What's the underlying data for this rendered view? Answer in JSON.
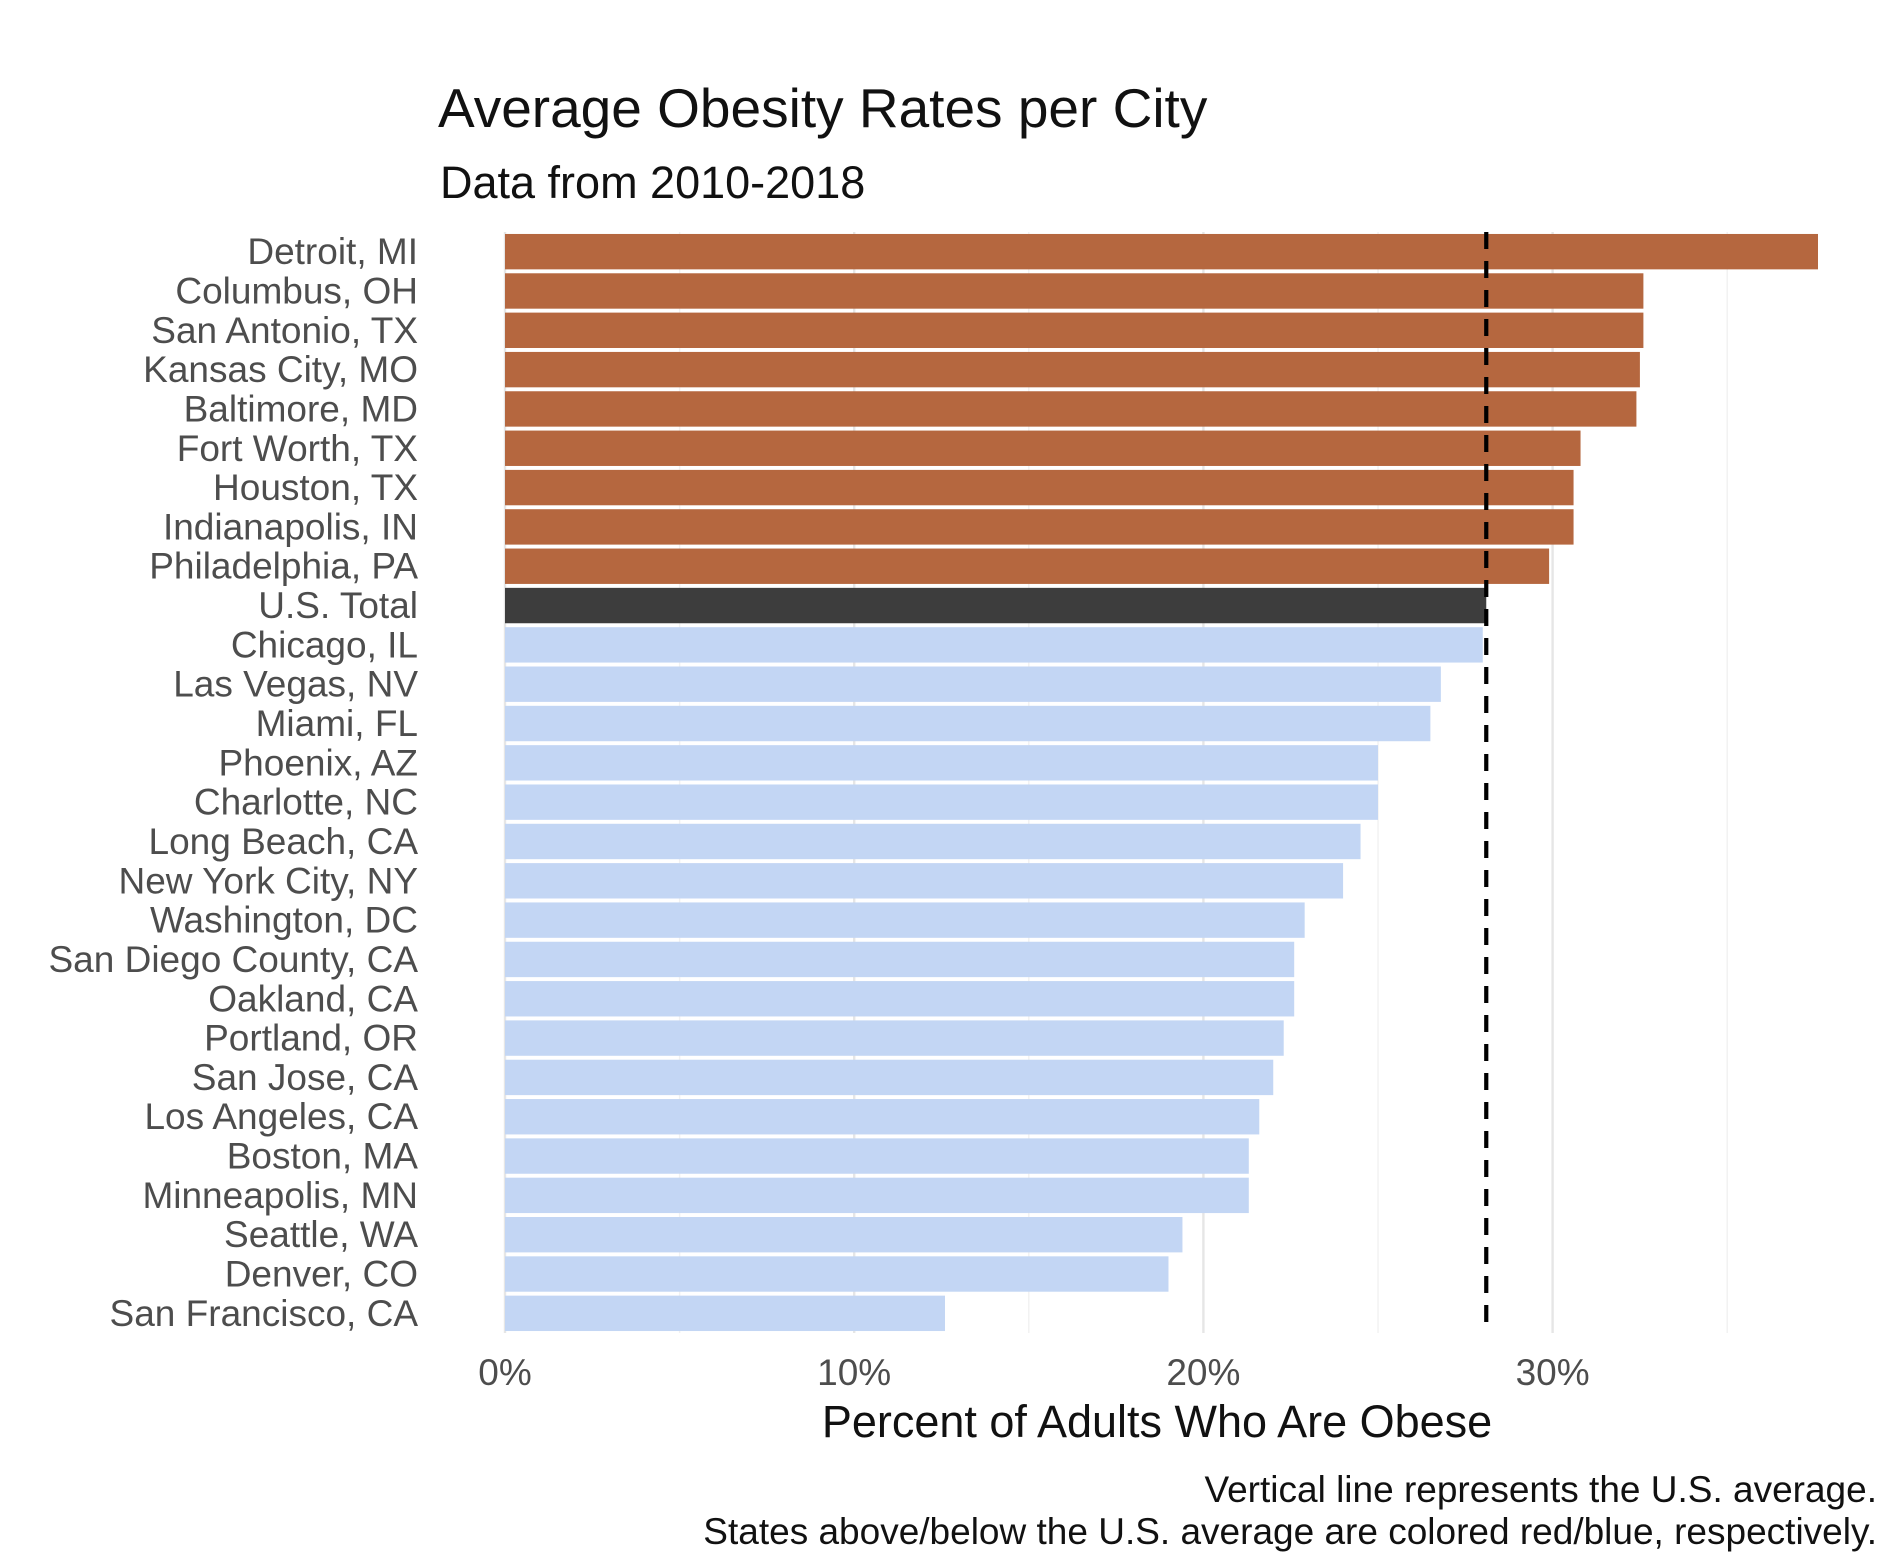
{
  "chart_data": {
    "type": "bar",
    "orientation": "horizontal",
    "title": "Average Obesity Rates per City",
    "subtitle": "Data from 2010-2018",
    "xlabel": "Percent of Adults Who Are Obese",
    "ylabel": "",
    "xlim": [
      0,
      37.6
    ],
    "x_ticks": [
      0,
      10,
      20,
      30
    ],
    "x_tick_labels": [
      "0%",
      "10%",
      "20%",
      "30%"
    ],
    "grid": true,
    "legend": "none",
    "categories": [
      "Detroit, MI",
      "Columbus, OH",
      "San Antonio, TX",
      "Kansas City, MO",
      "Baltimore, MD",
      "Fort Worth, TX",
      "Houston, TX",
      "Indianapolis, IN",
      "Philadelphia, PA",
      "U.S. Total",
      "Chicago, IL",
      "Las Vegas, NV",
      "Miami, FL",
      "Phoenix, AZ",
      "Charlotte, NC",
      "Long Beach, CA",
      "New York City, NY",
      "Washington, DC",
      "San Diego County, CA",
      "Oakland, CA",
      "Portland, OR",
      "San Jose, CA",
      "Los Angeles, CA",
      "Boston, MA",
      "Minneapolis, MN",
      "Seattle, WA",
      "Denver, CO",
      "San Francisco, CA"
    ],
    "values": [
      37.6,
      32.6,
      32.6,
      32.5,
      32.4,
      30.8,
      30.6,
      30.6,
      29.9,
      28.1,
      28.0,
      26.8,
      26.5,
      25.0,
      25.0,
      24.5,
      24.0,
      22.9,
      22.6,
      22.6,
      22.3,
      22.0,
      21.6,
      21.3,
      21.3,
      19.4,
      19.0,
      12.6
    ],
    "groups": [
      "above",
      "above",
      "above",
      "above",
      "above",
      "above",
      "above",
      "above",
      "above",
      "total",
      "below",
      "below",
      "below",
      "below",
      "below",
      "below",
      "below",
      "below",
      "below",
      "below",
      "below",
      "below",
      "below",
      "below",
      "below",
      "below",
      "below",
      "below"
    ],
    "reference_line": {
      "value": 28.1,
      "style": "dashed",
      "color": "#000000"
    },
    "colors": {
      "above": "#b5673f",
      "total": "#3d3d3d",
      "below": "#c3d6f4"
    },
    "caption": [
      "Vertical line represents the U.S. average.",
      "States above/below the U.S. average are colored red/blue, respectively."
    ]
  }
}
